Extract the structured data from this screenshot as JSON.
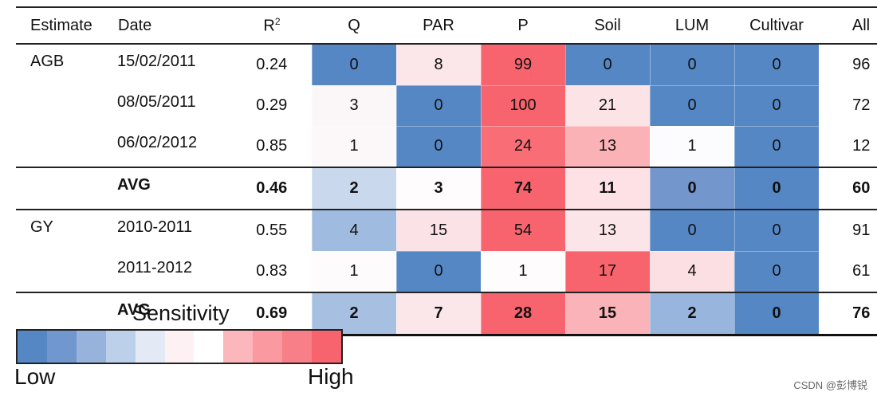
{
  "chart_data": {
    "type": "heatmap",
    "columns": [
      "Estimate",
      "Date",
      "R2",
      "Q",
      "PAR",
      "P",
      "Soil",
      "LUM",
      "Cultivar",
      "All"
    ],
    "heat_columns": [
      "Q",
      "PAR",
      "P",
      "Soil",
      "LUM",
      "Cultivar"
    ],
    "rows": [
      {
        "estimate": "AGB",
        "date": "15/02/2011",
        "r2": "0.24",
        "values": [
          0,
          8,
          99,
          0,
          0,
          0
        ],
        "all": "96",
        "avg": false
      },
      {
        "estimate": "",
        "date": "08/05/2011",
        "r2": "0.29",
        "values": [
          3,
          0,
          100,
          21,
          0,
          0
        ],
        "all": "72",
        "avg": false
      },
      {
        "estimate": "",
        "date": "06/02/2012",
        "r2": "0.85",
        "values": [
          1,
          0,
          24,
          13,
          1,
          0
        ],
        "all": "12",
        "avg": false
      },
      {
        "estimate": "",
        "date": "AVG",
        "r2": "0.46",
        "values": [
          2,
          3,
          74,
          11,
          0,
          0
        ],
        "all": "60",
        "avg": true
      },
      {
        "estimate": "GY",
        "date": "2010-2011",
        "r2": "0.55",
        "values": [
          4,
          15,
          54,
          13,
          0,
          0
        ],
        "all": "91",
        "avg": false
      },
      {
        "estimate": "",
        "date": "2011-2012",
        "r2": "0.83",
        "values": [
          1,
          0,
          1,
          17,
          4,
          0
        ],
        "all": "61",
        "avg": false
      },
      {
        "estimate": "",
        "date": "AVG",
        "r2": "0.69",
        "values": [
          2,
          7,
          28,
          15,
          2,
          0
        ],
        "all": "76",
        "avg": true
      }
    ],
    "cell_colors": [
      [
        "#5587c5",
        "#fbe6ea",
        "#f8646d",
        "#5587c5",
        "#5587c5",
        "#5587c5"
      ],
      [
        "#fbf7f9",
        "#5587c5",
        "#f8646d",
        "#fce3e6",
        "#5587c5",
        "#5587c5"
      ],
      [
        "#fcf8fa",
        "#5587c5",
        "#f96e76",
        "#fbb2b7",
        "#fcfbfd",
        "#5587c5"
      ],
      [
        "#c9d8ec",
        "#fefcfd",
        "#f8646d",
        "#fde1e5",
        "#7396cc",
        "#5587c5"
      ],
      [
        "#a0bbe0",
        "#fbe2e6",
        "#f8646d",
        "#fbe5e9",
        "#5587c5",
        "#5587c5"
      ],
      [
        "#fdfbfc",
        "#5587c5",
        "#fefcfd",
        "#f8646d",
        "#fcdfe3",
        "#5587c5"
      ],
      [
        "#a7c0e2",
        "#fbe6ea",
        "#f8646d",
        "#fab3b8",
        "#98b5de",
        "#5587c5"
      ]
    ],
    "legend": {
      "title": "Sensitivity",
      "low_label": "Low",
      "high_label": "High",
      "colors": [
        "#5587c5",
        "#7198ce",
        "#97b3dc",
        "#bdd0ea",
        "#e4eaf5",
        "#fdf1f3",
        "#ffffff",
        "#fbb7bb",
        "#fa9aa0",
        "#f87f87",
        "#f8646d"
      ]
    }
  },
  "header_labels": {
    "estimate": "Estimate",
    "date": "Date",
    "r2": "R",
    "r2_sup": "2",
    "q": "Q",
    "par": "PAR",
    "p": "P",
    "soil": "Soil",
    "lum": "LUM",
    "cultivar": "Cultivar",
    "all": "All"
  },
  "watermark": "CSDN @彭博锐"
}
